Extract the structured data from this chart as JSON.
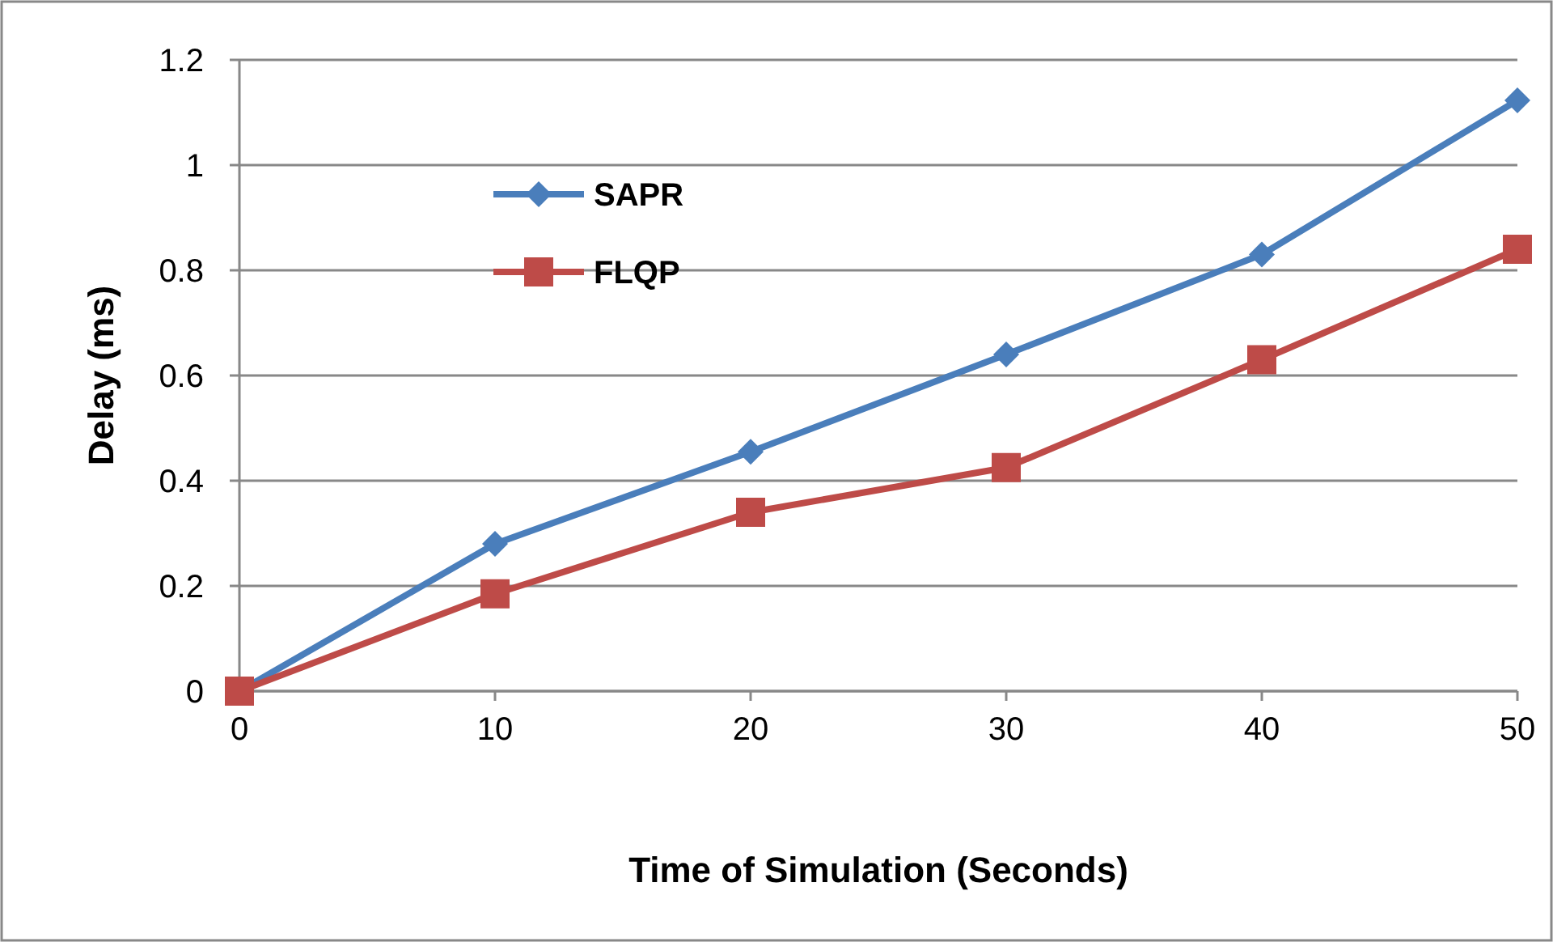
{
  "chart_data": {
    "type": "line",
    "xlabel": "Time of Simulation (Seconds)",
    "ylabel": "Delay (ms)",
    "x": [
      0,
      10,
      20,
      30,
      40,
      50
    ],
    "xlim": [
      0,
      50
    ],
    "xticks": [
      0,
      10,
      20,
      30,
      40,
      50
    ],
    "ylim": [
      0,
      1.2
    ],
    "yticks": [
      0,
      0.2,
      0.4,
      0.6,
      0.8,
      1,
      1.2
    ],
    "grid": "y",
    "legend": "top left",
    "series": [
      {
        "name": "SAPR",
        "color": "#4a7ebb",
        "marker": "diamond",
        "values": [
          0,
          0.28,
          0.455,
          0.64,
          0.83,
          1.123
        ]
      },
      {
        "name": "FLQP",
        "color": "#be4b48",
        "marker": "square",
        "values": [
          0,
          0.185,
          0.34,
          0.425,
          0.63,
          0.84
        ]
      }
    ]
  }
}
